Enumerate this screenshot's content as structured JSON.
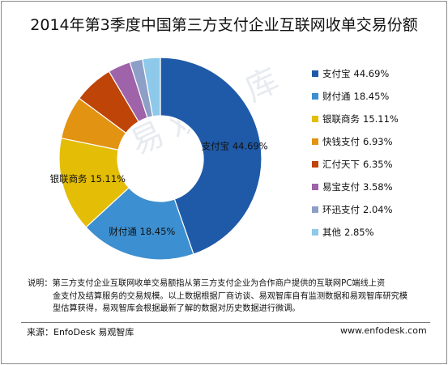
{
  "title": "2014年第3季度中国第三方支付企业互联网收单交易份额",
  "watermark": "易观智库",
  "chart_data": {
    "type": "pie",
    "title": "2014年第3季度中国第三方支付企业互联网收单交易份额",
    "legend_position": "right",
    "slices": [
      {
        "name": "支付宝",
        "value": 44.69,
        "label": "44.69%",
        "color": "#1f5aa8"
      },
      {
        "name": "财付通",
        "value": 18.45,
        "label": "18.45%",
        "color": "#3c8fd0"
      },
      {
        "name": "银联商务",
        "value": 15.11,
        "label": "15.11%",
        "color": "#e3bd06"
      },
      {
        "name": "快钱支付",
        "value": 6.93,
        "label": "6.93%",
        "color": "#e39312"
      },
      {
        "name": "汇付天下",
        "value": 6.35,
        "label": "6.35%",
        "color": "#bf4407"
      },
      {
        "name": "易宝支付",
        "value": 3.58,
        "label": "3.58%",
        "color": "#9e63a9"
      },
      {
        "name": "环迅支付",
        "value": 2.04,
        "label": "2.04%",
        "color": "#8d9fc6"
      },
      {
        "name": "其他",
        "value": 2.85,
        "label": "2.85%",
        "color": "#8ec9ea"
      }
    ],
    "slice_labels": [
      {
        "text": "支付宝 44.69%",
        "slice": 0
      },
      {
        "text": "财付通 18.45%",
        "slice": 1
      },
      {
        "text": "银联商务 15.11%",
        "slice": 2
      }
    ]
  },
  "note": {
    "lines": [
      "说明：第三方支付企业互联网收单交易额指从第三方支付企业为合作商户提供的互联网PC端线上资",
      "金支付及结算服务的交易规模。以上数据根据厂商访谈、易观智库自有监测数据和易观智库研究模",
      "型估算获得，易观智库会根据最新了解的数据对历史数据进行微调。"
    ]
  },
  "source": "来源：EnfoDesk 易观智库",
  "website": "www.enfodesk.com"
}
